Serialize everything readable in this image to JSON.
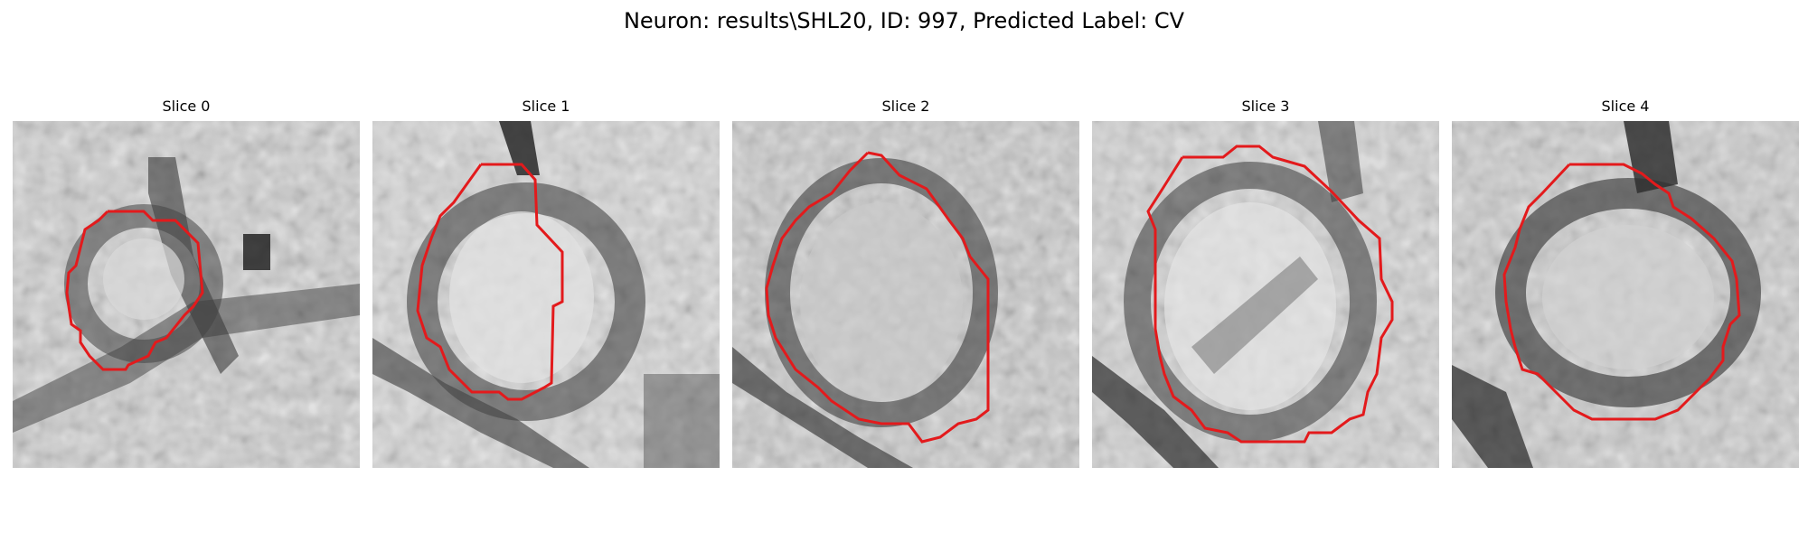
{
  "figure": {
    "title": "Neuron: results\\SHL20, ID: 997, Predicted Label: CV",
    "contour_color": "#e31a1c"
  },
  "panels": [
    {
      "title": "Slice 0"
    },
    {
      "title": "Slice 1"
    },
    {
      "title": "Slice 2"
    },
    {
      "title": "Slice 3"
    },
    {
      "title": "Slice 4"
    }
  ]
}
